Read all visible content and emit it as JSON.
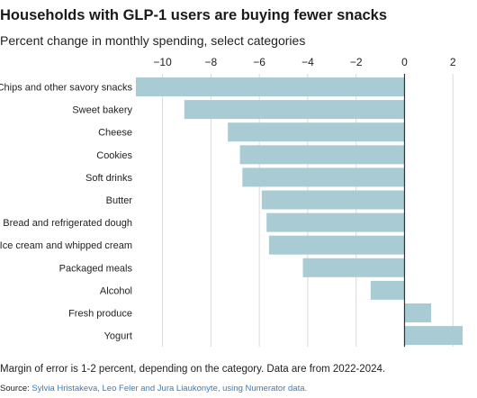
{
  "header": {
    "title": "Households with GLP-1 users are buying fewer snacks",
    "subtitle": "Percent change in monthly spending, select categories"
  },
  "footer": {
    "note": "Margin of error is 1-2 percent, depending on the category. Data are from 2022-2024.",
    "source_label": "Source:",
    "source_credit": "Sylvia Hristakeva, Leo Feler and Jura Liaukonyte, using Numerator data."
  },
  "colors": {
    "bar": "#a9cbd3",
    "zero_line": "#333333",
    "grid": "#d9d9d9",
    "credit": "#3a7bbf"
  },
  "chart_data": {
    "type": "bar",
    "orientation": "horizontal",
    "categories": [
      "Chips and other savory snacks",
      "Sweet bakery",
      "Cheese",
      "Cookies",
      "Soft drinks",
      "Butter",
      "Bread and refrigerated dough",
      "Ice cream and whipped cream",
      "Packaged meals",
      "Alcohol",
      "Fresh produce",
      "Yogurt"
    ],
    "values": [
      -11.1,
      -9.1,
      -7.3,
      -6.8,
      -6.7,
      -5.9,
      -5.7,
      -5.6,
      -4.2,
      -1.4,
      1.1,
      2.4
    ],
    "xlim": [
      -11.1,
      2.4
    ],
    "xticks": [
      -10,
      -8,
      -6,
      -4,
      -2,
      0,
      2
    ],
    "xtick_labels": [
      "−10",
      "−8",
      "−6",
      "−4",
      "−2",
      "0",
      "2"
    ],
    "title": "Households with GLP-1 users are buying fewer snacks",
    "subtitle": "Percent change in monthly spending, select categories",
    "grid": true,
    "legend": "none"
  }
}
